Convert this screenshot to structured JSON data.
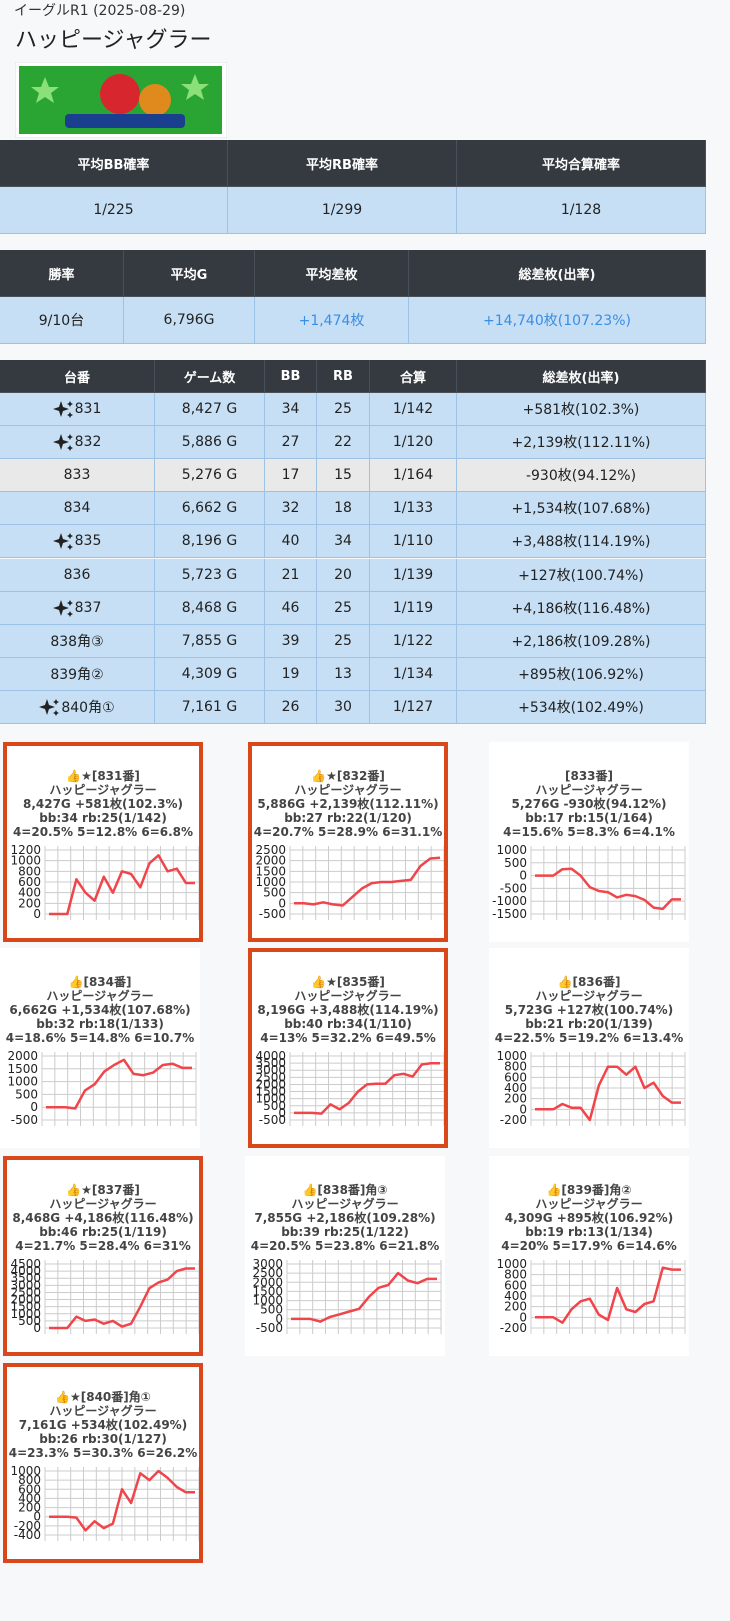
{
  "header": {
    "breadcrumb": "イーグルR1 (2025-08-29)",
    "title": "ハッピージャグラー"
  },
  "summary1": {
    "headers": [
      "平均BB確率",
      "平均RB確率",
      "平均合算確率"
    ],
    "row": [
      "1/225",
      "1/299",
      "1/128"
    ]
  },
  "summary2": {
    "headers": [
      "勝率",
      "平均G",
      "平均差枚",
      "総差枚(出率)"
    ],
    "row": [
      "9/10台",
      "6,796G",
      "+1,474枚",
      "+14,740枚(107.23%)"
    ],
    "accent_color": "#3a8ee6"
  },
  "machines": {
    "headers": [
      "台番",
      "ゲーム数",
      "BB",
      "RB",
      "合算",
      "総差枚(出率)"
    ],
    "rows": [
      {
        "cells": [
          "831",
          "8,427 G",
          "34",
          "25",
          "1/142",
          "+581枚(102.3%)"
        ],
        "sparkle": true,
        "color": "#c6dff5"
      },
      {
        "cells": [
          "832",
          "5,886 G",
          "27",
          "22",
          "1/120",
          "+2,139枚(112.11%)"
        ],
        "sparkle": true,
        "color": "#c6dff5"
      },
      {
        "cells": [
          "833",
          "5,276 G",
          "17",
          "15",
          "1/164",
          "-930枚(94.12%)"
        ],
        "sparkle": false,
        "color": "#e9e9e9"
      },
      {
        "cells": [
          "834",
          "6,662 G",
          "32",
          "18",
          "1/133",
          "+1,534枚(107.68%)"
        ],
        "sparkle": false,
        "color": "#c6dff5"
      },
      {
        "cells": [
          "835",
          "8,196 G",
          "40",
          "34",
          "1/110",
          "+3,488枚(114.19%)"
        ],
        "sparkle": true,
        "color": "#c6dff5"
      },
      {
        "cells": [
          "836",
          "5,723 G",
          "21",
          "20",
          "1/139",
          "+127枚(100.74%)"
        ],
        "sparkle": false,
        "color": "#c6dff5"
      },
      {
        "cells": [
          "837",
          "8,468 G",
          "46",
          "25",
          "1/119",
          "+4,186枚(116.48%)"
        ],
        "sparkle": true,
        "color": "#c6dff5"
      },
      {
        "cells": [
          "838角③",
          "7,855 G",
          "39",
          "25",
          "1/122",
          "+2,186枚(109.28%)"
        ],
        "sparkle": false,
        "color": "#c6dff5"
      },
      {
        "cells": [
          "839角②",
          "4,309 G",
          "19",
          "13",
          "1/134",
          "+895枚(106.92%)"
        ],
        "sparkle": false,
        "color": "#c6dff5"
      },
      {
        "cells": [
          "840角①",
          "7,161 G",
          "26",
          "30",
          "1/127",
          "+534枚(102.49%)"
        ],
        "sparkle": true,
        "color": "#c6dff5"
      }
    ]
  },
  "chart_data": [
    {
      "type": "line",
      "highlight": true,
      "color": "#f0454a",
      "lines": [
        "👍★[831番]",
        "ハッピージャグラー",
        "8,427G +581枚(102.3%)",
        "bb:34 rb:25(1/142)",
        "4=20.5% 5=12.8% 6=6.8%"
      ],
      "values": [
        0,
        0,
        0,
        650,
        400,
        250,
        700,
        400,
        800,
        750,
        500,
        950,
        1100,
        800,
        850,
        581,
        581
      ],
      "ylim": [
        0,
        1200
      ],
      "yticks": [
        0,
        200,
        400,
        600,
        800,
        1000,
        1200
      ]
    },
    {
      "type": "line",
      "highlight": true,
      "color": "#f0454a",
      "lines": [
        "👍★[832番]",
        "ハッピージャグラー",
        "5,886G +2,139枚(112.11%)",
        "bb:27 rb:22(1/120)",
        "4=20.7% 5=28.9% 6=31.1%"
      ],
      "values": [
        0,
        0,
        -50,
        50,
        -50,
        -100,
        300,
        700,
        950,
        1000,
        1000,
        1050,
        1100,
        1750,
        2100,
        2139
      ],
      "ylim": [
        -500,
        2500
      ],
      "yticks": [
        -500,
        0,
        500,
        1000,
        1500,
        2000,
        2500
      ]
    },
    {
      "type": "line",
      "highlight": false,
      "color": "#f0454a",
      "lines": [
        "[833番]",
        "ハッピージャグラー",
        "5,276G -930枚(94.12%)",
        "bb:17 rb:15(1/164)",
        "4=15.6% 5=8.3% 6=4.1%"
      ],
      "values": [
        0,
        0,
        0,
        250,
        270,
        0,
        -450,
        -600,
        -650,
        -850,
        -750,
        -800,
        -950,
        -1250,
        -1300,
        -930,
        -930
      ],
      "ylim": [
        -1500,
        1000
      ],
      "yticks": [
        -1500,
        -1000,
        -500,
        0,
        500,
        1000
      ]
    },
    {
      "type": "line",
      "highlight": false,
      "color": "#f0454a",
      "lines": [
        "👍[834番]",
        "ハッピージャグラー",
        "6,662G +1,534枚(107.68%)",
        "bb:32 rb:18(1/133)",
        "4=18.6% 5=14.8% 6=10.7%"
      ],
      "values": [
        0,
        0,
        0,
        -50,
        650,
        900,
        1400,
        1650,
        1850,
        1300,
        1250,
        1350,
        1650,
        1700,
        1534,
        1534
      ],
      "ylim": [
        -500,
        2000
      ],
      "yticks": [
        -500,
        0,
        500,
        1000,
        1500,
        2000
      ]
    },
    {
      "type": "line",
      "highlight": true,
      "color": "#f0454a",
      "lines": [
        "👍★[835番]",
        "ハッピージャグラー",
        "8,196G +3,488枚(114.19%)",
        "bb:40 rb:34(1/110)",
        "4=13% 5=32.2% 6=49.5%"
      ],
      "values": [
        0,
        0,
        0,
        -50,
        600,
        250,
        700,
        1500,
        2000,
        2050,
        2050,
        2650,
        2750,
        2550,
        3400,
        3488,
        3488
      ],
      "ylim": [
        -500,
        4000
      ],
      "yticks": [
        -500,
        0,
        500,
        1000,
        1500,
        2000,
        2500,
        3000,
        3500,
        4000
      ]
    },
    {
      "type": "line",
      "highlight": false,
      "color": "#f0454a",
      "lines": [
        "👍[836番]",
        "ハッピージャグラー",
        "5,723G +127枚(100.74%)",
        "bb:21 rb:20(1/139)",
        "4=22.5% 5=19.2% 6=13.4%"
      ],
      "values": [
        0,
        0,
        0,
        100,
        30,
        30,
        -200,
        450,
        800,
        800,
        650,
        800,
        400,
        500,
        250,
        127,
        127
      ],
      "ylim": [
        -200,
        1000
      ],
      "yticks": [
        -200,
        0,
        200,
        400,
        600,
        800,
        1000
      ]
    },
    {
      "type": "line",
      "highlight": true,
      "color": "#f0454a",
      "lines": [
        "👍★[837番]",
        "ハッピージャグラー",
        "8,468G +4,186枚(116.48%)",
        "bb:46 rb:25(1/119)",
        "4=21.7% 5=28.4% 6=31%"
      ],
      "values": [
        0,
        0,
        0,
        800,
        500,
        600,
        300,
        500,
        100,
        300,
        1500,
        2800,
        3200,
        3400,
        4000,
        4186,
        4186
      ],
      "ylim": [
        0,
        4500
      ],
      "yticks": [
        0,
        500,
        1000,
        1500,
        2000,
        2500,
        3000,
        3500,
        4000,
        4500
      ]
    },
    {
      "type": "line",
      "highlight": false,
      "color": "#f0454a",
      "lines": [
        "👍[838番]角③",
        "ハッピージャグラー",
        "7,855G +2,186枚(109.28%)",
        "bb:39 rb:25(1/122)",
        "4=20.5% 5=23.8% 6=21.8%"
      ],
      "values": [
        0,
        0,
        0,
        -150,
        100,
        250,
        400,
        550,
        1200,
        1700,
        1850,
        2500,
        2100,
        1950,
        2186,
        2186
      ],
      "ylim": [
        -500,
        3000
      ],
      "yticks": [
        -500,
        0,
        500,
        1000,
        1500,
        2000,
        2500,
        3000
      ]
    },
    {
      "type": "line",
      "highlight": false,
      "color": "#f0454a",
      "lines": [
        "👍[839番]角②",
        "ハッピージャグラー",
        "4,309G +895枚(106.92%)",
        "bb:19 rb:13(1/134)",
        "4=20% 5=17.9% 6=14.6%"
      ],
      "values": [
        0,
        0,
        0,
        -100,
        150,
        300,
        350,
        50,
        -50,
        550,
        150,
        100,
        250,
        300,
        930,
        895,
        895
      ],
      "ylim": [
        -200,
        1000
      ],
      "yticks": [
        -200,
        0,
        200,
        400,
        600,
        800,
        1000
      ]
    },
    {
      "type": "line",
      "highlight": true,
      "color": "#f0454a",
      "lines": [
        "👍★[840番]角①",
        "ハッピージャグラー",
        "7,161G +534枚(102.49%)",
        "bb:26 rb:30(1/127)",
        "4=23.3% 5=30.3% 6=26.2%"
      ],
      "values": [
        0,
        0,
        0,
        -20,
        -300,
        -100,
        -250,
        -150,
        600,
        300,
        950,
        800,
        1000,
        850,
        650,
        534,
        534
      ],
      "ylim": [
        -400,
        1000
      ],
      "yticks": [
        -400,
        -200,
        0,
        200,
        400,
        600,
        800,
        1000
      ]
    }
  ]
}
